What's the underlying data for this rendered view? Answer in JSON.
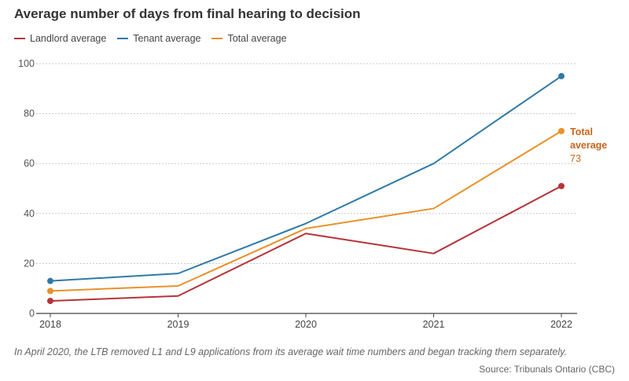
{
  "chart_data": {
    "type": "line",
    "title": "Average number of days from final hearing to decision",
    "xlabel": "",
    "ylabel": "",
    "x": [
      "2018",
      "2019",
      "2020",
      "2021",
      "2022"
    ],
    "ylim": [
      0,
      100
    ],
    "yticks": [
      0,
      20,
      40,
      60,
      80,
      100
    ],
    "grid": true,
    "legend_position": "top-left",
    "series": [
      {
        "name": "Landlord average",
        "color": "#b5343a",
        "values": [
          5,
          7,
          32,
          24,
          51
        ]
      },
      {
        "name": "Tenant average",
        "color": "#2f7aa6",
        "values": [
          13,
          16,
          36,
          60,
          95
        ]
      },
      {
        "name": "Total average",
        "color": "#e8922a",
        "values": [
          9,
          11,
          34,
          42,
          73
        ]
      }
    ],
    "annotation": {
      "label_line1": "Total",
      "label_line2": "average",
      "value": "73",
      "color": "#c9651a"
    }
  },
  "note": "In April 2020, the LTB removed L1 and L9 applications from its average wait time numbers and began tracking them separately.",
  "source": "Source: Tribunals Ontario (CBC)"
}
